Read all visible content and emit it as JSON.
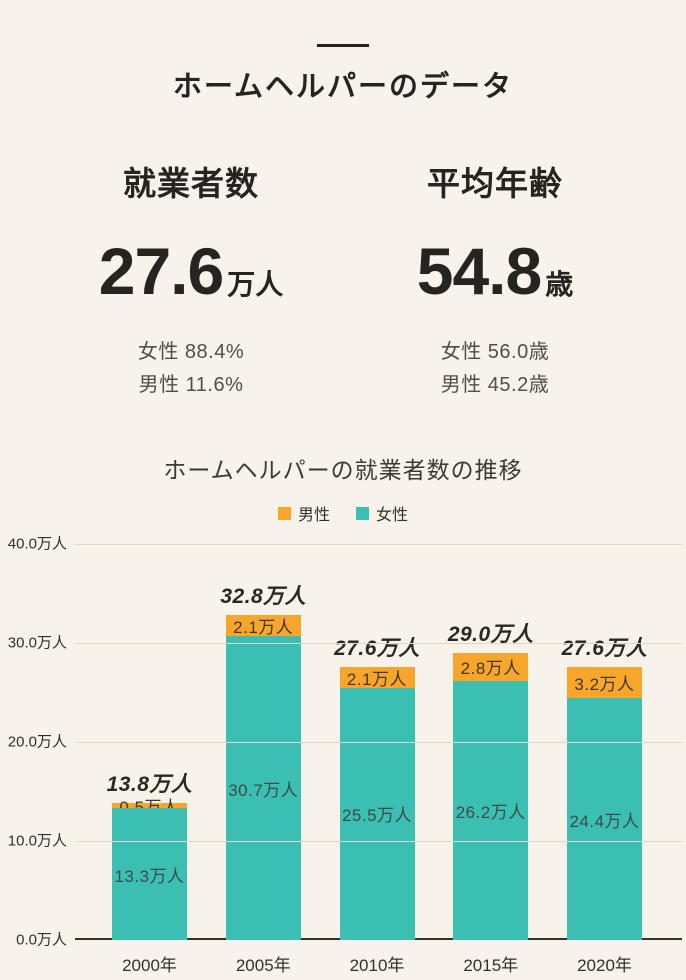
{
  "page": {
    "title": "ホームヘルパーのデータ"
  },
  "stats": [
    {
      "heading": "就業者数",
      "value": "27.6",
      "unit": "万人",
      "details": [
        "女性 88.4%",
        "男性 11.6%"
      ]
    },
    {
      "heading": "平均年齢",
      "value": "54.8",
      "unit": "歳",
      "details": [
        "女性 56.0歳",
        "男性 45.2歳"
      ]
    }
  ],
  "chart_data": {
    "type": "bar",
    "stacked": true,
    "title": "ホームヘルパーの就業者数の推移",
    "categories": [
      "2000年",
      "2005年",
      "2010年",
      "2015年",
      "2020年"
    ],
    "series": [
      {
        "name": "男性",
        "color": "#f7a62b",
        "values": [
          0.5,
          2.1,
          2.1,
          2.8,
          3.2
        ],
        "labels": [
          "0.5万人",
          "2.1万人",
          "2.1万人",
          "2.8万人",
          "3.2万人"
        ]
      },
      {
        "name": "女性",
        "color": "#3bbfb3",
        "values": [
          13.3,
          30.7,
          25.5,
          26.2,
          24.4
        ],
        "labels": [
          "13.3万人",
          "30.7万人",
          "25.5万人",
          "26.2万人",
          "24.4万人"
        ]
      }
    ],
    "totals": [
      13.8,
      32.8,
      27.6,
      29.0,
      27.6
    ],
    "total_labels": [
      "13.8万人",
      "32.8万人",
      "27.6万人",
      "29.0万人",
      "27.6万人"
    ],
    "y_ticks": [
      {
        "value": 40,
        "label": "40.0万人"
      },
      {
        "value": 30,
        "label": "30.0万人"
      },
      {
        "value": 20,
        "label": "20.0万人"
      },
      {
        "value": 10,
        "label": "10.0万人"
      },
      {
        "value": 0,
        "label": "0.0万人"
      }
    ],
    "ylim": [
      0,
      40
    ],
    "grid": true,
    "legend_position": "top"
  },
  "colors": {
    "background": "#f7f3ea",
    "text_primary": "#262420",
    "text_secondary": "#514e47",
    "male": "#f7a62b",
    "female": "#3bbfb3",
    "gridline": "#ddd8cb",
    "axis_line": "#383127"
  }
}
